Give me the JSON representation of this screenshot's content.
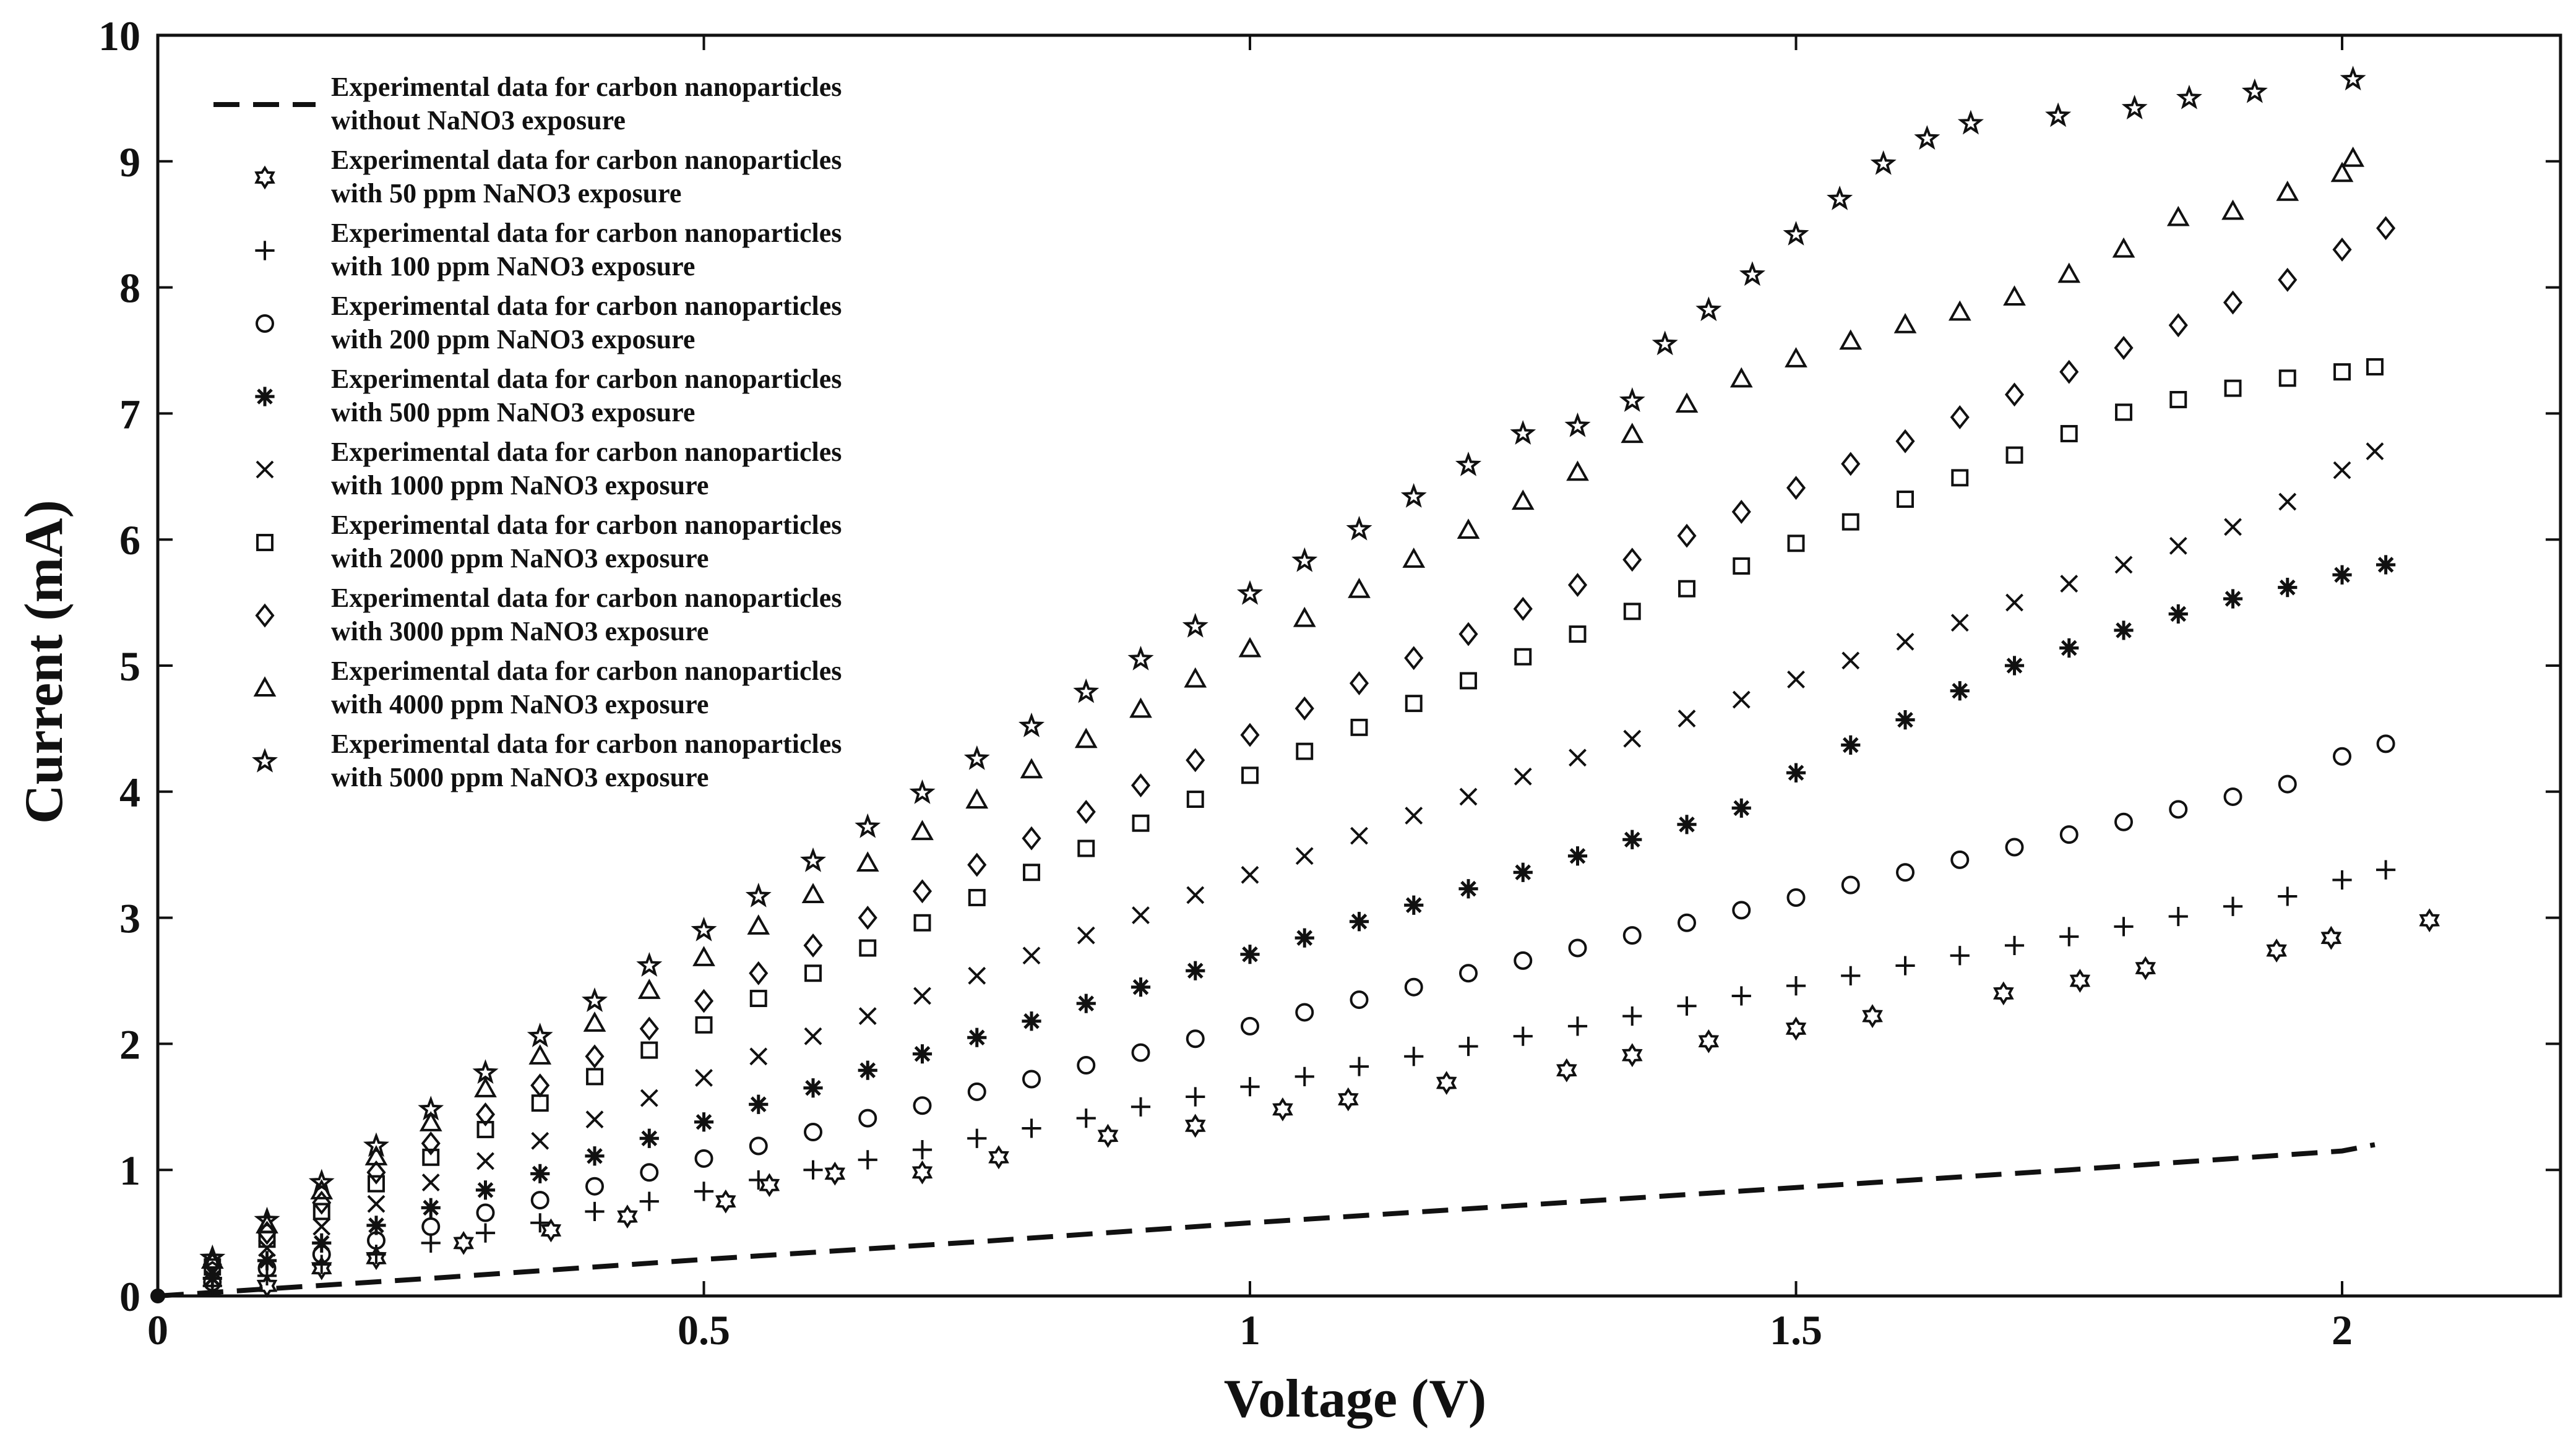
{
  "chart_data": {
    "type": "scatter",
    "title": "",
    "xlabel": "Voltage (V)",
    "ylabel": "Current (mA)",
    "xlim": [
      0,
      2.2
    ],
    "ylim": [
      0,
      10
    ],
    "xticks": [
      0,
      0.5,
      1,
      1.5,
      2
    ],
    "xtick_labels": [
      "0",
      "0.5",
      "1",
      "1.5",
      "2"
    ],
    "yticks": [
      0,
      1,
      2,
      3,
      4,
      5,
      6,
      7,
      8,
      9,
      10
    ],
    "ytick_labels": [
      "0",
      "1",
      "2",
      "3",
      "4",
      "5",
      "6",
      "7",
      "8",
      "9",
      "10"
    ],
    "grid": false,
    "legend_position": "top-left",
    "series": [
      {
        "name": "Experimental data for carbon nanoparticles without NaNO3 exposure",
        "label_lines": [
          "Experimental data for carbon nanoparticles",
          "without NaNO3 exposure"
        ],
        "marker": "dashed-line",
        "x": [
          0,
          0.25,
          0.5,
          0.75,
          1.0,
          1.25,
          1.5,
          1.75,
          2.0,
          2.03
        ],
        "y": [
          0,
          0.14,
          0.29,
          0.43,
          0.58,
          0.72,
          0.86,
          1.0,
          1.15,
          1.2
        ]
      },
      {
        "name": "Experimental data for carbon nanoparticles with 50 ppm NaNO3 exposure",
        "label_lines": [
          "Experimental data for carbon nanoparticles",
          "with 50 ppm NaNO3 exposure"
        ],
        "marker": "hexagram",
        "x": [
          0.1,
          0.15,
          0.2,
          0.28,
          0.36,
          0.43,
          0.52,
          0.56,
          0.62,
          0.7,
          0.77,
          0.87,
          0.95,
          1.03,
          1.09,
          1.18,
          1.29,
          1.35,
          1.42,
          1.5,
          1.57,
          1.69,
          1.76,
          1.82,
          1.94,
          1.99,
          2.08
        ],
        "y": [
          0.08,
          0.22,
          0.3,
          0.42,
          0.52,
          0.63,
          0.75,
          0.88,
          0.97,
          0.98,
          1.1,
          1.27,
          1.35,
          1.48,
          1.56,
          1.69,
          1.79,
          1.91,
          2.02,
          2.12,
          2.22,
          2.4,
          2.5,
          2.6,
          2.74,
          2.84,
          2.98
        ]
      },
      {
        "name": "Experimental data for carbon nanoparticles with 100 ppm NaNO3 exposure",
        "label_lines": [
          "Experimental data for carbon nanoparticles",
          "with 100 ppm NaNO3 exposure"
        ],
        "marker": "plus",
        "x": [
          0.05,
          0.1,
          0.15,
          0.2,
          0.25,
          0.3,
          0.35,
          0.4,
          0.45,
          0.5,
          0.55,
          0.6,
          0.65,
          0.7,
          0.75,
          0.8,
          0.85,
          0.9,
          0.95,
          1.0,
          1.05,
          1.1,
          1.15,
          1.2,
          1.25,
          1.3,
          1.35,
          1.4,
          1.45,
          1.5,
          1.55,
          1.6,
          1.65,
          1.7,
          1.75,
          1.8,
          1.85,
          1.9,
          1.95,
          2.0,
          2.04
        ],
        "y": [
          0.08,
          0.16,
          0.25,
          0.33,
          0.42,
          0.5,
          0.58,
          0.67,
          0.75,
          0.83,
          0.92,
          1.0,
          1.08,
          1.16,
          1.25,
          1.33,
          1.41,
          1.5,
          1.58,
          1.66,
          1.74,
          1.82,
          1.9,
          1.98,
          2.06,
          2.14,
          2.22,
          2.3,
          2.38,
          2.46,
          2.54,
          2.62,
          2.7,
          2.78,
          2.85,
          2.93,
          3.01,
          3.09,
          3.17,
          3.3,
          3.38
        ]
      },
      {
        "name": "Experimental data for carbon nanoparticles with 200 ppm NaNO3 exposure",
        "label_lines": [
          "Experimental data for carbon nanoparticles",
          "with 200 ppm NaNO3 exposure"
        ],
        "marker": "circle",
        "x": [
          0.05,
          0.1,
          0.15,
          0.2,
          0.25,
          0.3,
          0.35,
          0.4,
          0.45,
          0.5,
          0.55,
          0.6,
          0.65,
          0.7,
          0.75,
          0.8,
          0.85,
          0.9,
          0.95,
          1.0,
          1.05,
          1.1,
          1.15,
          1.2,
          1.25,
          1.3,
          1.35,
          1.4,
          1.45,
          1.5,
          1.55,
          1.6,
          1.65,
          1.7,
          1.75,
          1.8,
          1.85,
          1.9,
          1.95,
          2.0,
          2.04
        ],
        "y": [
          0.11,
          0.22,
          0.33,
          0.44,
          0.55,
          0.66,
          0.76,
          0.87,
          0.98,
          1.09,
          1.19,
          1.3,
          1.41,
          1.51,
          1.62,
          1.72,
          1.83,
          1.93,
          2.04,
          2.14,
          2.25,
          2.35,
          2.45,
          2.56,
          2.66,
          2.76,
          2.86,
          2.96,
          3.06,
          3.16,
          3.26,
          3.36,
          3.46,
          3.56,
          3.66,
          3.76,
          3.86,
          3.96,
          4.06,
          4.28,
          4.38
        ]
      },
      {
        "name": "Experimental data for carbon nanoparticles with 500 ppm NaNO3 exposure",
        "label_lines": [
          "Experimental data for carbon nanoparticles",
          "with 500 ppm NaNO3 exposure"
        ],
        "marker": "asterisk",
        "x": [
          0.05,
          0.1,
          0.15,
          0.2,
          0.25,
          0.3,
          0.35,
          0.4,
          0.45,
          0.5,
          0.55,
          0.6,
          0.65,
          0.7,
          0.75,
          0.8,
          0.85,
          0.9,
          0.95,
          1.0,
          1.05,
          1.1,
          1.15,
          1.2,
          1.25,
          1.3,
          1.35,
          1.4,
          1.45,
          1.5,
          1.55,
          1.6,
          1.65,
          1.7,
          1.75,
          1.8,
          1.85,
          1.9,
          1.95,
          2.0,
          2.04
        ],
        "y": [
          0.14,
          0.28,
          0.42,
          0.56,
          0.7,
          0.84,
          0.97,
          1.11,
          1.25,
          1.38,
          1.52,
          1.65,
          1.79,
          1.92,
          2.05,
          2.18,
          2.32,
          2.45,
          2.58,
          2.71,
          2.84,
          2.97,
          3.1,
          3.23,
          3.36,
          3.49,
          3.62,
          3.74,
          3.87,
          4.15,
          4.37,
          4.57,
          4.8,
          5.0,
          5.14,
          5.28,
          5.41,
          5.53,
          5.62,
          5.72,
          5.8
        ]
      },
      {
        "name": "Experimental data for carbon nanoparticles with 1000 ppm NaNO3 exposure",
        "label_lines": [
          "Experimental data for carbon nanoparticles",
          "with 1000 ppm NaNO3 exposure"
        ],
        "marker": "cross",
        "x": [
          0.05,
          0.1,
          0.15,
          0.2,
          0.25,
          0.3,
          0.35,
          0.4,
          0.45,
          0.5,
          0.55,
          0.6,
          0.65,
          0.7,
          0.75,
          0.8,
          0.85,
          0.9,
          0.95,
          1.0,
          1.05,
          1.1,
          1.15,
          1.2,
          1.25,
          1.3,
          1.35,
          1.4,
          1.45,
          1.5,
          1.55,
          1.6,
          1.65,
          1.7,
          1.75,
          1.8,
          1.85,
          1.9,
          1.95,
          2.0,
          2.03
        ],
        "y": [
          0.2,
          0.38,
          0.55,
          0.73,
          0.9,
          1.07,
          1.23,
          1.4,
          1.57,
          1.73,
          1.9,
          2.06,
          2.22,
          2.38,
          2.54,
          2.7,
          2.86,
          3.02,
          3.18,
          3.34,
          3.49,
          3.65,
          3.81,
          3.96,
          4.12,
          4.27,
          4.42,
          4.58,
          4.73,
          4.89,
          5.04,
          5.19,
          5.34,
          5.5,
          5.65,
          5.8,
          5.95,
          6.1,
          6.3,
          6.55,
          6.7
        ]
      },
      {
        "name": "Experimental data for carbon nanoparticles with 2000 ppm NaNO3 exposure",
        "label_lines": [
          "Experimental data for carbon nanoparticles",
          "with 2000 ppm NaNO3 exposure"
        ],
        "marker": "square",
        "x": [
          0.05,
          0.1,
          0.15,
          0.2,
          0.25,
          0.3,
          0.35,
          0.4,
          0.45,
          0.5,
          0.55,
          0.6,
          0.65,
          0.7,
          0.75,
          0.8,
          0.85,
          0.9,
          0.95,
          1.0,
          1.05,
          1.1,
          1.15,
          1.2,
          1.25,
          1.3,
          1.35,
          1.4,
          1.45,
          1.5,
          1.55,
          1.6,
          1.65,
          1.7,
          1.75,
          1.8,
          1.85,
          1.9,
          1.95,
          2.0,
          2.03
        ],
        "y": [
          0.23,
          0.45,
          0.67,
          0.89,
          1.1,
          1.32,
          1.53,
          1.74,
          1.95,
          2.15,
          2.36,
          2.56,
          2.76,
          2.96,
          3.16,
          3.36,
          3.55,
          3.75,
          3.94,
          4.13,
          4.32,
          4.51,
          4.7,
          4.88,
          5.07,
          5.25,
          5.43,
          5.61,
          5.79,
          5.97,
          6.14,
          6.32,
          6.49,
          6.67,
          6.84,
          7.01,
          7.11,
          7.2,
          7.28,
          7.33,
          7.37
        ]
      },
      {
        "name": "Experimental data for carbon nanoparticles with 3000 ppm NaNO3 exposure",
        "label_lines": [
          "Experimental data for carbon nanoparticles",
          "with 3000 ppm NaNO3 exposure"
        ],
        "marker": "diamond",
        "x": [
          0.05,
          0.1,
          0.15,
          0.2,
          0.25,
          0.3,
          0.35,
          0.4,
          0.45,
          0.5,
          0.55,
          0.6,
          0.65,
          0.7,
          0.75,
          0.8,
          0.85,
          0.9,
          0.95,
          1.0,
          1.05,
          1.1,
          1.15,
          1.2,
          1.25,
          1.3,
          1.35,
          1.4,
          1.45,
          1.5,
          1.55,
          1.6,
          1.65,
          1.7,
          1.75,
          1.8,
          1.85,
          1.9,
          1.95,
          2.0,
          2.04
        ],
        "y": [
          0.25,
          0.5,
          0.74,
          0.98,
          1.21,
          1.44,
          1.67,
          1.9,
          2.12,
          2.34,
          2.56,
          2.78,
          3.0,
          3.21,
          3.42,
          3.63,
          3.84,
          4.05,
          4.25,
          4.45,
          4.66,
          4.86,
          5.06,
          5.25,
          5.45,
          5.64,
          5.84,
          6.03,
          6.22,
          6.41,
          6.6,
          6.78,
          6.97,
          7.15,
          7.33,
          7.52,
          7.7,
          7.88,
          8.06,
          8.3,
          8.47
        ]
      },
      {
        "name": "Experimental data for carbon nanoparticles with 4000 ppm NaNO3 exposure",
        "label_lines": [
          "Experimental data for carbon nanoparticles",
          "with 4000 ppm NaNO3 exposure"
        ],
        "marker": "triangle",
        "x": [
          0.05,
          0.1,
          0.15,
          0.2,
          0.25,
          0.3,
          0.35,
          0.4,
          0.45,
          0.5,
          0.55,
          0.6,
          0.65,
          0.7,
          0.75,
          0.8,
          0.85,
          0.9,
          0.95,
          1.0,
          1.05,
          1.1,
          1.15,
          1.2,
          1.25,
          1.3,
          1.35,
          1.4,
          1.45,
          1.5,
          1.55,
          1.6,
          1.65,
          1.7,
          1.75,
          1.8,
          1.85,
          1.9,
          1.95,
          2.0,
          2.01
        ],
        "y": [
          0.28,
          0.56,
          0.83,
          1.1,
          1.37,
          1.64,
          1.9,
          2.16,
          2.42,
          2.68,
          2.93,
          3.18,
          3.43,
          3.68,
          3.93,
          4.17,
          4.41,
          4.65,
          4.89,
          5.13,
          5.37,
          5.6,
          5.84,
          6.07,
          6.3,
          6.53,
          6.83,
          7.07,
          7.27,
          7.43,
          7.57,
          7.7,
          7.8,
          7.92,
          8.1,
          8.3,
          8.55,
          8.6,
          8.75,
          8.9,
          9.02
        ]
      },
      {
        "name": "Experimental data for carbon nanoparticles with 5000 ppm NaNO3 exposure",
        "label_lines": [
          "Experimental data for carbon nanoparticles",
          "with 5000 ppm NaNO3 exposure"
        ],
        "marker": "pentagram",
        "x": [
          0.05,
          0.1,
          0.15,
          0.2,
          0.25,
          0.3,
          0.35,
          0.4,
          0.45,
          0.5,
          0.55,
          0.6,
          0.65,
          0.7,
          0.75,
          0.8,
          0.85,
          0.9,
          0.95,
          1.0,
          1.05,
          1.1,
          1.15,
          1.2,
          1.25,
          1.3,
          1.35,
          1.38,
          1.42,
          1.46,
          1.5,
          1.54,
          1.58,
          1.62,
          1.66,
          1.74,
          1.81,
          1.86,
          1.92,
          2.01
        ],
        "y": [
          0.3,
          0.6,
          0.9,
          1.19,
          1.48,
          1.77,
          2.06,
          2.34,
          2.62,
          2.9,
          3.17,
          3.45,
          3.72,
          3.99,
          4.26,
          4.52,
          4.79,
          5.05,
          5.31,
          5.57,
          5.83,
          6.08,
          6.34,
          6.59,
          6.84,
          6.9,
          7.1,
          7.55,
          7.82,
          8.1,
          8.42,
          8.7,
          8.98,
          9.18,
          9.3,
          9.36,
          9.42,
          9.5,
          9.55,
          9.65
        ]
      }
    ]
  }
}
